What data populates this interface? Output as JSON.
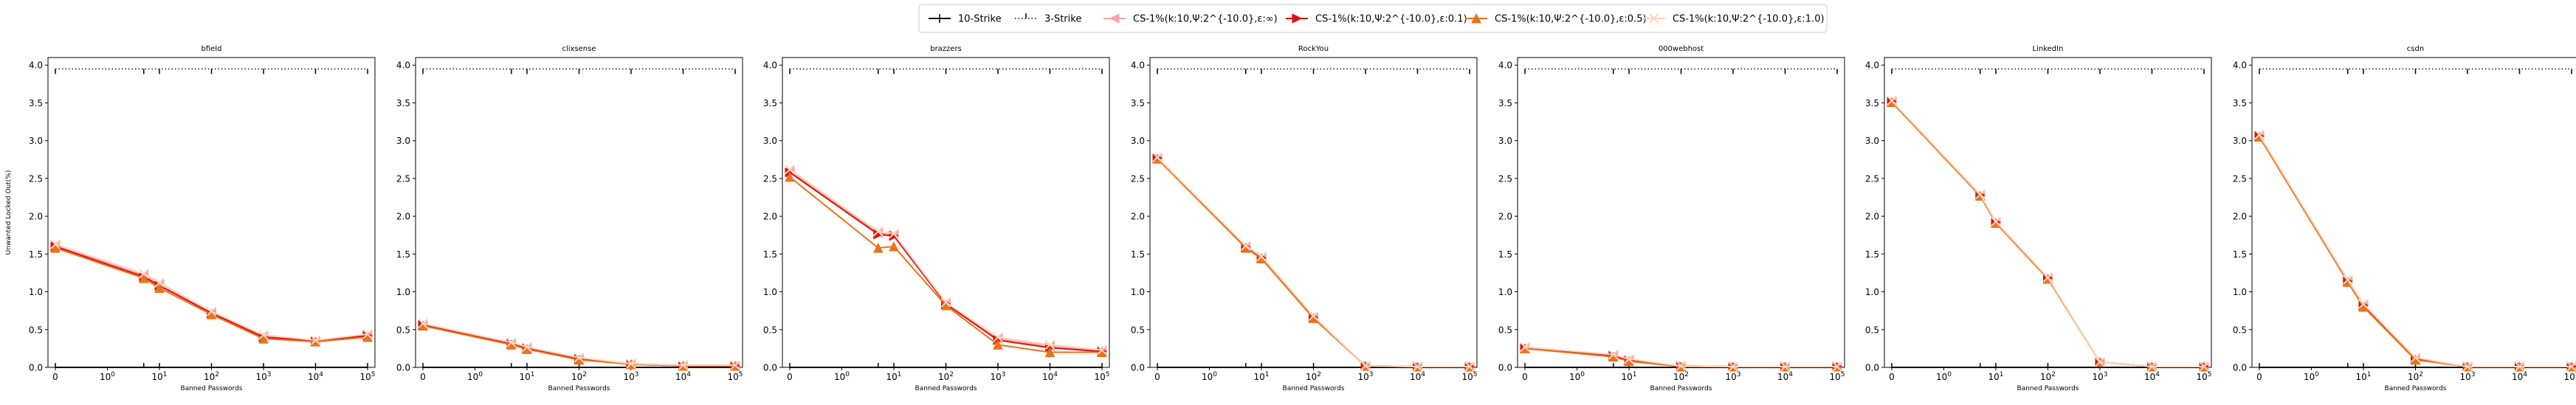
{
  "legend": {
    "placement": "top-center",
    "entries": [
      {
        "label": "10-Strike",
        "color": "#000000",
        "marker": "tick"
      },
      {
        "label": "3-Strike",
        "color": "#000000",
        "marker": "dotted"
      },
      {
        "label": "CS-1%(k:10,Ψ:2^{-10.0},ε:∞)",
        "color": "#f4a6a6",
        "marker": "tri-left"
      },
      {
        "label": "CS-1%(k:10,Ψ:2^{-10.0},ε:0.1)",
        "color": "#e01010",
        "marker": "tri-right"
      },
      {
        "label": "CS-1%(k:10,Ψ:2^{-10.0},ε:0.5)",
        "color": "#e8731c",
        "marker": "tri-up"
      },
      {
        "label": "CS-1%(k:10,Ψ:2^{-10.0},ε:1.0)",
        "color": "#fbd7c2",
        "marker": "x"
      }
    ]
  },
  "y_axis_label": "Unwanted Locked Out(%)",
  "x_axis_label": "Banned Passwords",
  "chart_data": [
    {
      "type": "line",
      "title": "bfield",
      "xscale": "symlog",
      "ylim": [
        0,
        4.1
      ],
      "x": [
        0,
        5,
        10,
        100,
        1000,
        10000,
        100000
      ],
      "series": [
        {
          "name": "10-Strike",
          "values": [
            0,
            0,
            0,
            0,
            0,
            0,
            0
          ]
        },
        {
          "name": "3-Strike",
          "values": [
            3.95,
            3.95,
            3.95,
            3.95,
            3.95,
            3.95,
            3.95
          ]
        },
        {
          "name": "CS-1%(k:10,Ψ:2^{-10.0},ε:∞)",
          "values": [
            1.62,
            1.22,
            1.1,
            0.73,
            0.42,
            0.35,
            0.43
          ]
        },
        {
          "name": "CS-1%(k:10,Ψ:2^{-10.0},ε:0.1)",
          "values": [
            1.6,
            1.2,
            1.08,
            0.72,
            0.4,
            0.35,
            0.42
          ]
        },
        {
          "name": "CS-1%(k:10,Ψ:2^{-10.0},ε:0.5)",
          "values": [
            1.58,
            1.18,
            1.05,
            0.7,
            0.38,
            0.34,
            0.4
          ]
        },
        {
          "name": "CS-1%(k:10,Ψ:2^{-10.0},ε:1.0)",
          "values": [
            1.63,
            1.24,
            1.12,
            0.74,
            0.43,
            0.36,
            0.44
          ]
        }
      ]
    },
    {
      "type": "line",
      "title": "clixsense",
      "xscale": "symlog",
      "ylim": [
        0,
        4.1
      ],
      "x": [
        0,
        5,
        10,
        100,
        1000,
        10000,
        100000
      ],
      "series": [
        {
          "name": "10-Strike",
          "values": [
            0,
            0,
            0,
            0,
            0,
            0,
            0
          ]
        },
        {
          "name": "3-Strike",
          "values": [
            3.95,
            3.95,
            3.95,
            3.95,
            3.95,
            3.95,
            3.95
          ]
        },
        {
          "name": "CS-1%(k:10,Ψ:2^{-10.0},ε:∞)",
          "values": [
            0.57,
            0.32,
            0.26,
            0.12,
            0.05,
            0.03,
            0.03
          ]
        },
        {
          "name": "CS-1%(k:10,Ψ:2^{-10.0},ε:0.1)",
          "values": [
            0.56,
            0.31,
            0.25,
            0.11,
            0.04,
            0.02,
            0.02
          ]
        },
        {
          "name": "CS-1%(k:10,Ψ:2^{-10.0},ε:0.5)",
          "values": [
            0.55,
            0.3,
            0.24,
            0.1,
            0.04,
            0.02,
            0.02
          ]
        },
        {
          "name": "CS-1%(k:10,Ψ:2^{-10.0},ε:1.0)",
          "values": [
            0.58,
            0.33,
            0.27,
            0.13,
            0.05,
            0.03,
            0.03
          ]
        }
      ]
    },
    {
      "type": "line",
      "title": "brazzers",
      "xscale": "symlog",
      "ylim": [
        0,
        4.1
      ],
      "x": [
        0,
        5,
        10,
        100,
        1000,
        10000,
        100000
      ],
      "series": [
        {
          "name": "10-Strike",
          "values": [
            0,
            0,
            0,
            0,
            0,
            0,
            0
          ]
        },
        {
          "name": "3-Strike",
          "values": [
            3.95,
            3.95,
            3.95,
            3.95,
            3.95,
            3.95,
            3.95
          ]
        },
        {
          "name": "CS-1%(k:10,Ψ:2^{-10.0},ε:∞)",
          "values": [
            2.6,
            1.78,
            1.75,
            0.85,
            0.38,
            0.28,
            0.22
          ]
        },
        {
          "name": "CS-1%(k:10,Ψ:2^{-10.0},ε:0.1)",
          "values": [
            2.58,
            1.76,
            1.74,
            0.84,
            0.36,
            0.26,
            0.21
          ]
        },
        {
          "name": "CS-1%(k:10,Ψ:2^{-10.0},ε:0.5)",
          "values": [
            2.52,
            1.58,
            1.6,
            0.82,
            0.3,
            0.2,
            0.2
          ]
        },
        {
          "name": "CS-1%(k:10,Ψ:2^{-10.0},ε:1.0)",
          "values": [
            2.62,
            1.8,
            1.77,
            0.86,
            0.4,
            0.3,
            0.23
          ]
        }
      ]
    },
    {
      "type": "line",
      "title": "RockYou",
      "xscale": "symlog",
      "ylim": [
        0,
        4.1
      ],
      "x": [
        0,
        5,
        10,
        100,
        1000,
        10000,
        100000
      ],
      "series": [
        {
          "name": "10-Strike",
          "values": [
            0,
            0,
            0,
            0,
            0,
            0,
            0
          ]
        },
        {
          "name": "3-Strike",
          "values": [
            3.95,
            3.95,
            3.95,
            3.95,
            3.95,
            3.95,
            3.95
          ]
        },
        {
          "name": "CS-1%(k:10,Ψ:2^{-10.0},ε:∞)",
          "values": [
            2.77,
            1.6,
            1.46,
            0.67,
            0.02,
            0.01,
            0.01
          ]
        },
        {
          "name": "CS-1%(k:10,Ψ:2^{-10.0},ε:0.1)",
          "values": [
            2.77,
            1.59,
            1.45,
            0.66,
            0.02,
            0.01,
            0.01
          ]
        },
        {
          "name": "CS-1%(k:10,Ψ:2^{-10.0},ε:0.5)",
          "values": [
            2.76,
            1.58,
            1.44,
            0.65,
            0.02,
            0.01,
            0.01
          ]
        },
        {
          "name": "CS-1%(k:10,Ψ:2^{-10.0},ε:1.0)",
          "values": [
            2.78,
            1.61,
            1.47,
            0.68,
            0.02,
            0.01,
            0.01
          ]
        }
      ]
    },
    {
      "type": "line",
      "title": "000webhost",
      "xscale": "symlog",
      "ylim": [
        0,
        4.1
      ],
      "x": [
        0,
        5,
        10,
        100,
        1000,
        10000,
        100000
      ],
      "series": [
        {
          "name": "10-Strike",
          "values": [
            0,
            0,
            0,
            0,
            0,
            0,
            0
          ]
        },
        {
          "name": "3-Strike",
          "values": [
            3.95,
            3.95,
            3.95,
            3.95,
            3.95,
            3.95,
            3.95
          ]
        },
        {
          "name": "CS-1%(k:10,Ψ:2^{-10.0},ε:∞)",
          "values": [
            0.26,
            0.16,
            0.1,
            0.02,
            0.01,
            0.01,
            0.01
          ]
        },
        {
          "name": "CS-1%(k:10,Ψ:2^{-10.0},ε:0.1)",
          "values": [
            0.25,
            0.15,
            0.09,
            0.02,
            0.01,
            0.01,
            0.01
          ]
        },
        {
          "name": "CS-1%(k:10,Ψ:2^{-10.0},ε:0.5)",
          "values": [
            0.25,
            0.14,
            0.08,
            0.01,
            0.01,
            0.01,
            0.01
          ]
        },
        {
          "name": "CS-1%(k:10,Ψ:2^{-10.0},ε:1.0)",
          "values": [
            0.27,
            0.17,
            0.11,
            0.02,
            0.01,
            0.01,
            0.01
          ]
        }
      ]
    },
    {
      "type": "line",
      "title": "LinkedIn",
      "xscale": "symlog",
      "ylim": [
        0,
        4.1
      ],
      "x": [
        0,
        5,
        10,
        100,
        1000,
        10000,
        100000
      ],
      "series": [
        {
          "name": "10-Strike",
          "values": [
            0,
            0,
            0,
            0,
            0,
            0,
            0
          ]
        },
        {
          "name": "3-Strike",
          "values": [
            3.95,
            3.95,
            3.95,
            3.95,
            3.95,
            3.95,
            3.95
          ]
        },
        {
          "name": "CS-1%(k:10,Ψ:2^{-10.0},ε:∞)",
          "values": [
            3.52,
            2.28,
            1.92,
            1.18,
            0.07,
            0.01,
            0.01
          ]
        },
        {
          "name": "CS-1%(k:10,Ψ:2^{-10.0},ε:0.1)",
          "values": [
            3.52,
            2.28,
            1.92,
            1.18,
            0.07,
            0.01,
            0.01
          ]
        },
        {
          "name": "CS-1%(k:10,Ψ:2^{-10.0},ε:0.5)",
          "values": [
            3.51,
            2.27,
            1.91,
            1.17,
            0.07,
            0.01,
            0.01
          ]
        },
        {
          "name": "CS-1%(k:10,Ψ:2^{-10.0},ε:1.0)",
          "values": [
            3.53,
            2.29,
            1.93,
            1.19,
            0.07,
            0.01,
            0.01
          ]
        }
      ]
    },
    {
      "type": "line",
      "title": "csdn",
      "xscale": "symlog",
      "ylim": [
        0,
        4.1
      ],
      "x": [
        0,
        5,
        10,
        100,
        1000,
        10000,
        100000
      ],
      "series": [
        {
          "name": "10-Strike",
          "values": [
            0,
            0,
            0,
            0,
            0,
            0,
            0
          ]
        },
        {
          "name": "3-Strike",
          "values": [
            3.95,
            3.95,
            3.95,
            3.95,
            3.95,
            3.95,
            3.95
          ]
        },
        {
          "name": "CS-1%(k:10,Ψ:2^{-10.0},ε:∞)",
          "values": [
            3.07,
            1.15,
            0.83,
            0.12,
            0.01,
            0.01,
            0.01
          ]
        },
        {
          "name": "CS-1%(k:10,Ψ:2^{-10.0},ε:0.1)",
          "values": [
            3.06,
            1.14,
            0.82,
            0.11,
            0.01,
            0.01,
            0.01
          ]
        },
        {
          "name": "CS-1%(k:10,Ψ:2^{-10.0},ε:0.5)",
          "values": [
            3.05,
            1.13,
            0.8,
            0.1,
            0.01,
            0.01,
            0.01
          ]
        },
        {
          "name": "CS-1%(k:10,Ψ:2^{-10.0},ε:1.0)",
          "values": [
            3.08,
            1.16,
            0.84,
            0.13,
            0.01,
            0.01,
            0.01
          ]
        }
      ]
    }
  ]
}
